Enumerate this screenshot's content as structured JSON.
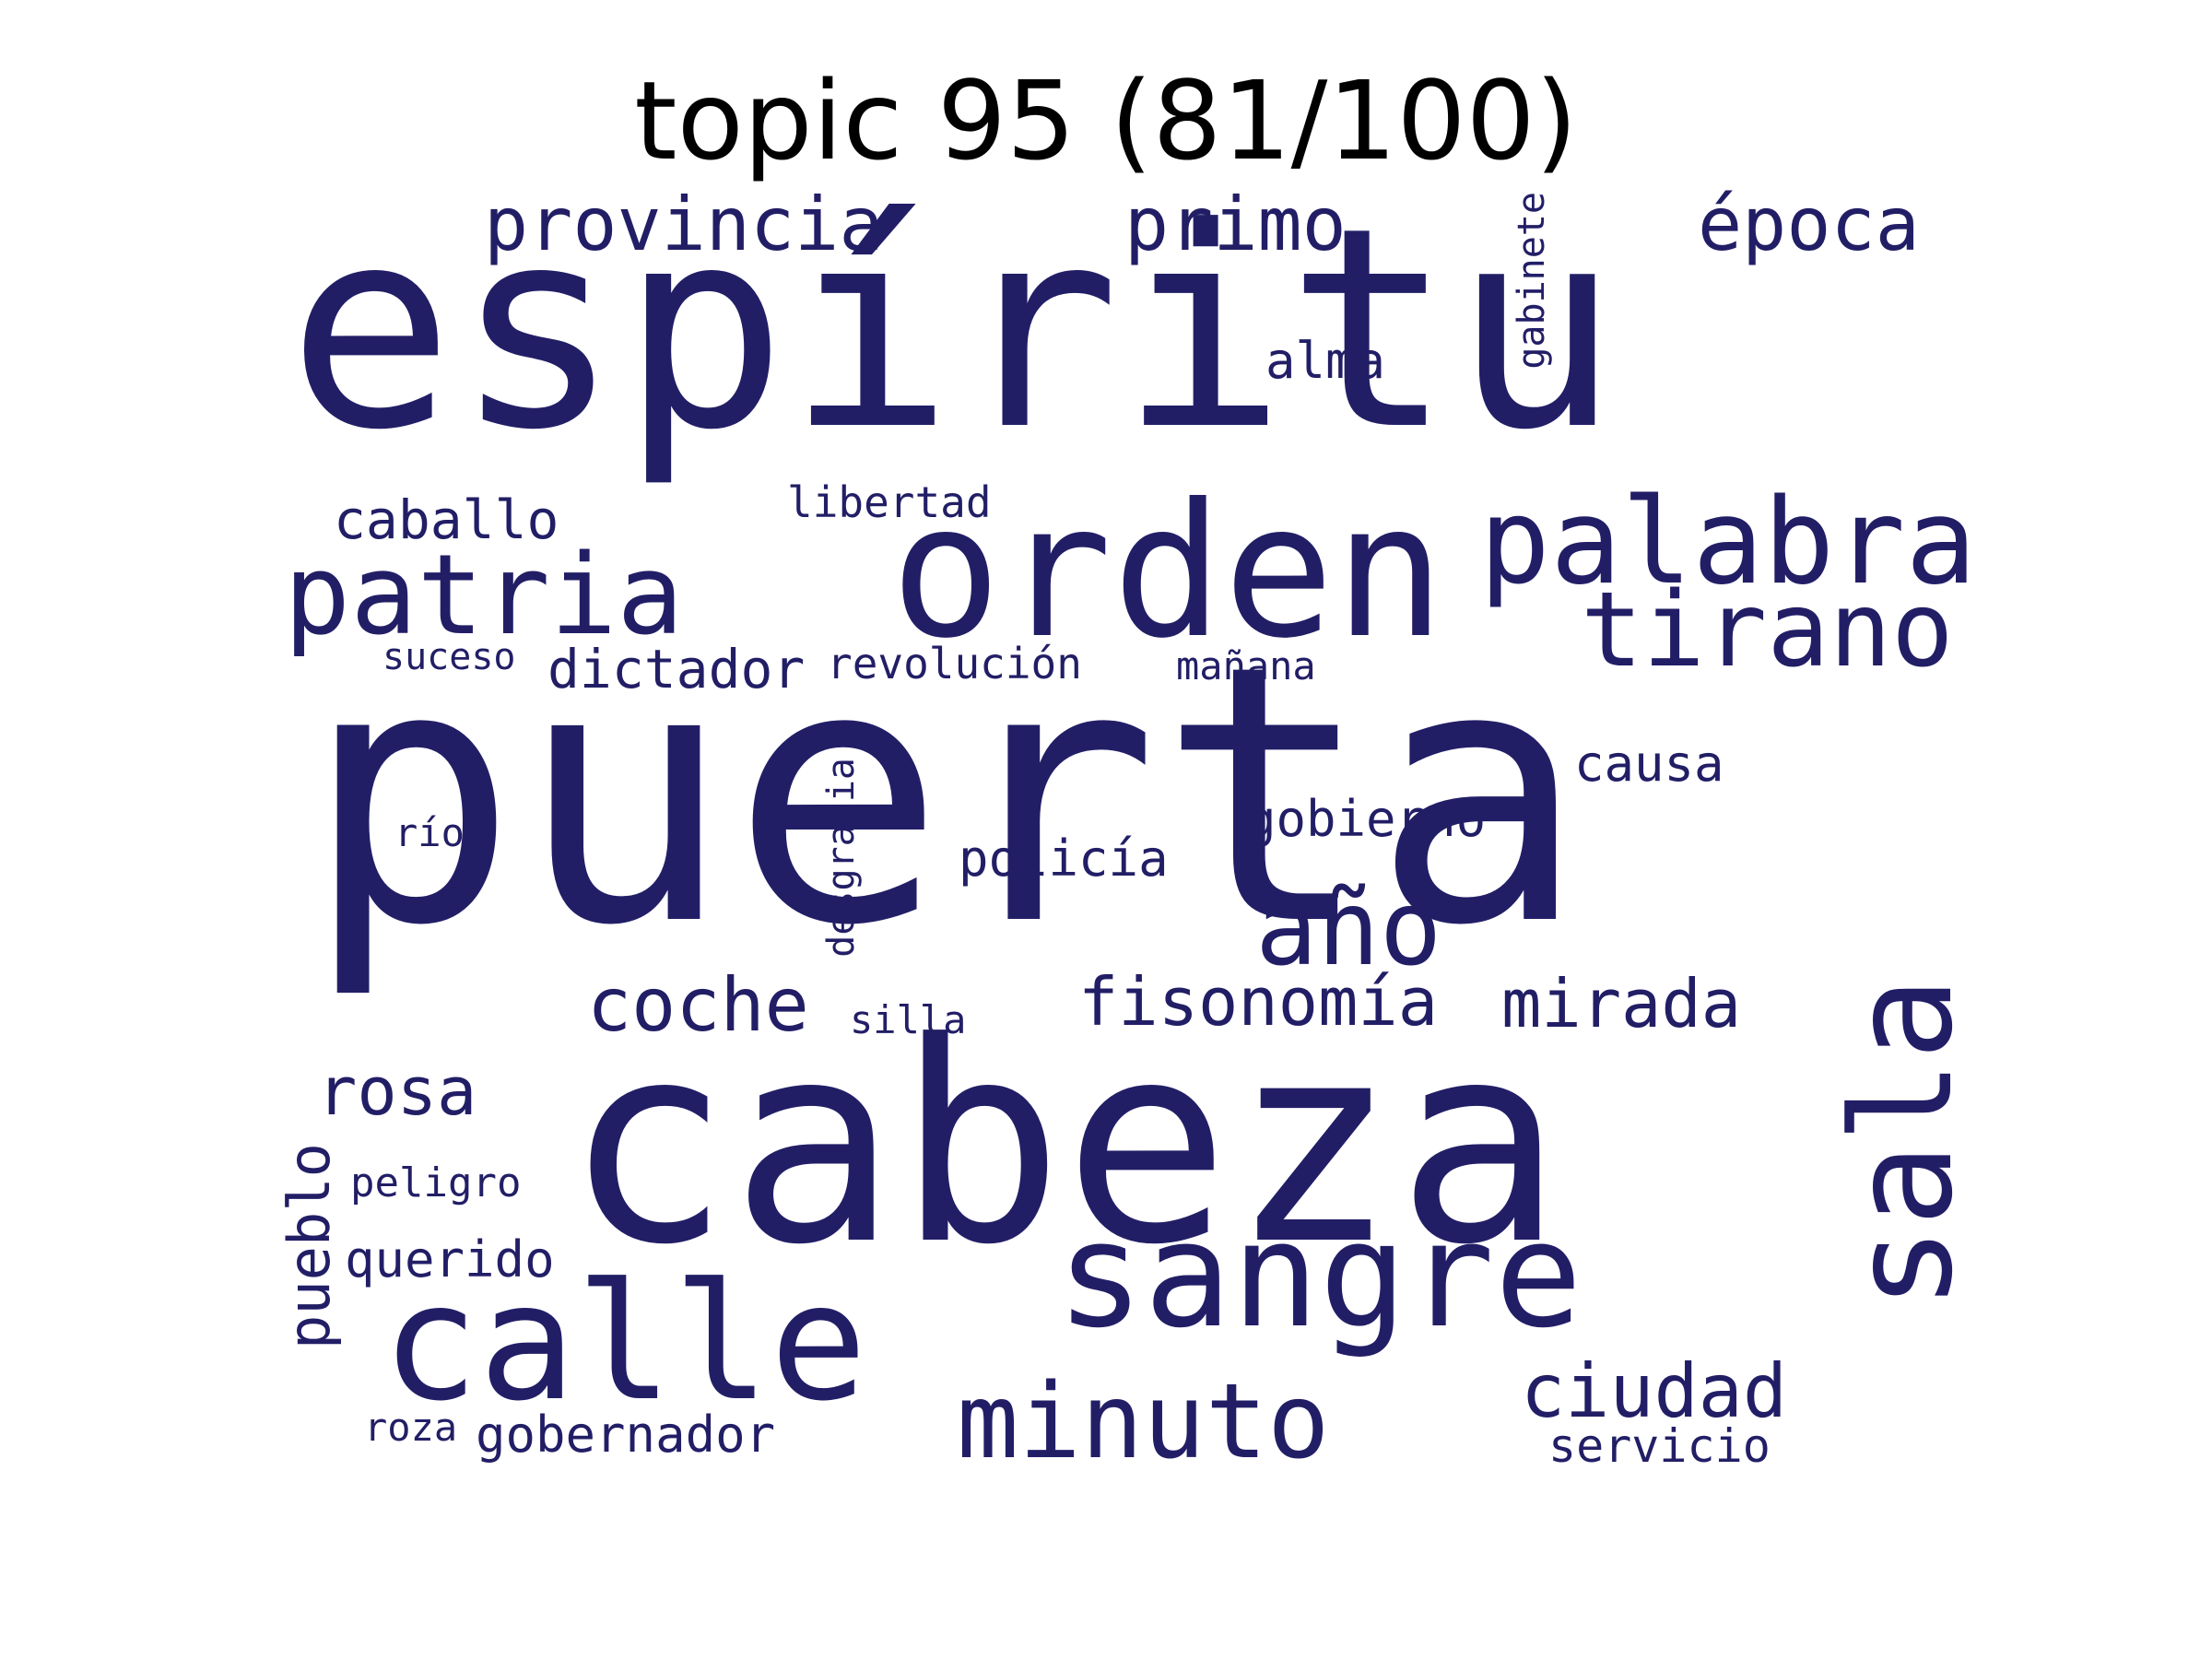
{
  "title": "topic 95 (81/100)",
  "word_color": "#221e66",
  "words": [
    {
      "text": "puerta"
    },
    {
      "text": "espíritu"
    },
    {
      "text": "cabeza"
    },
    {
      "text": "orden"
    },
    {
      "text": "sangre"
    },
    {
      "text": "calle"
    },
    {
      "text": "sala"
    },
    {
      "text": "palabra"
    },
    {
      "text": "patria"
    },
    {
      "text": "tirano"
    },
    {
      "text": "minuto"
    },
    {
      "text": "año"
    },
    {
      "text": "provincia"
    },
    {
      "text": "primo"
    },
    {
      "text": "época"
    },
    {
      "text": "ciudad"
    },
    {
      "text": "coche"
    },
    {
      "text": "mirada"
    },
    {
      "text": "fisonomía"
    },
    {
      "text": "rosa"
    },
    {
      "text": "pueblo"
    },
    {
      "text": "caballo"
    },
    {
      "text": "dictador"
    },
    {
      "text": "gobierno"
    },
    {
      "text": "policía"
    },
    {
      "text": "causa"
    },
    {
      "text": "alma"
    },
    {
      "text": "gobernador"
    },
    {
      "text": "querido"
    },
    {
      "text": "servicio"
    },
    {
      "text": "revolución"
    },
    {
      "text": "libertad"
    },
    {
      "text": "desgracia"
    },
    {
      "text": "gabinete"
    },
    {
      "text": "mañana"
    },
    {
      "text": "peligro"
    },
    {
      "text": "silla"
    },
    {
      "text": "suceso"
    },
    {
      "text": "río"
    },
    {
      "text": "roza"
    }
  ]
}
